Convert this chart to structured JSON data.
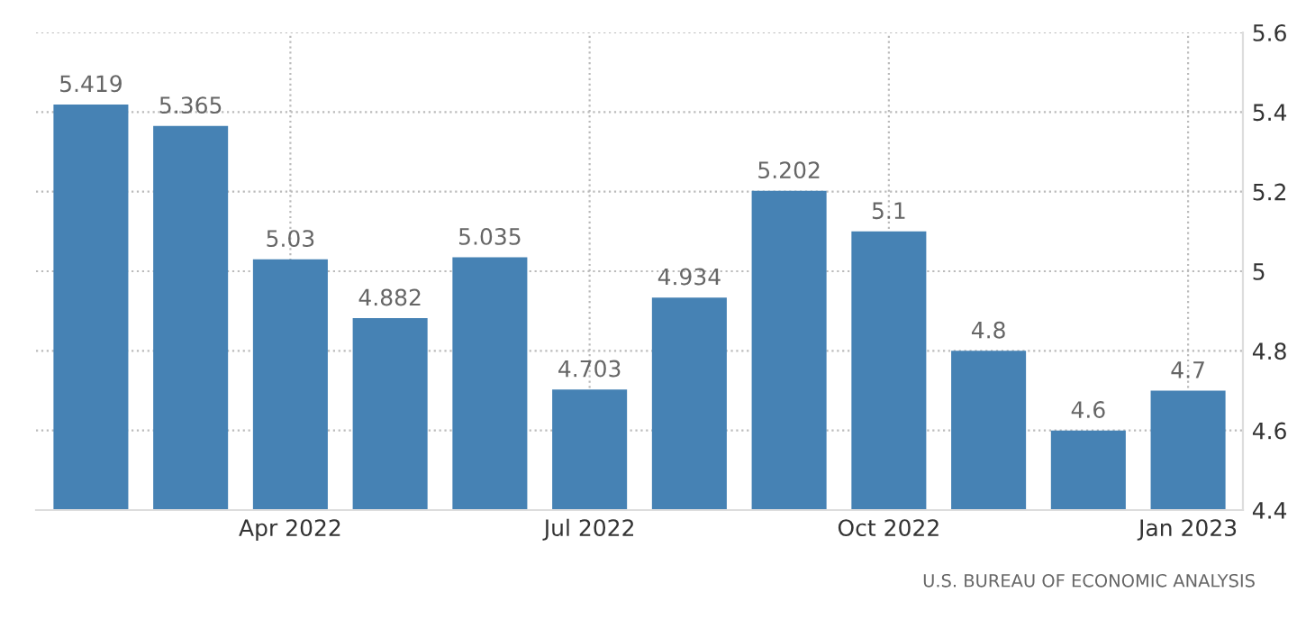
{
  "chart_data": {
    "type": "bar",
    "categories": [
      null,
      null,
      "Apr 2022",
      null,
      null,
      "Jul 2022",
      null,
      null,
      "Oct 2022",
      null,
      null,
      "Jan 2023"
    ],
    "values": [
      5.419,
      5.365,
      5.03,
      4.882,
      5.035,
      4.703,
      4.934,
      5.202,
      5.1,
      4.8,
      4.6,
      4.7
    ],
    "color": "#4682b4",
    "ylim": [
      4.4,
      5.6
    ],
    "yticks": [
      4.4,
      4.6,
      4.8,
      5,
      5.2,
      5.4,
      5.6
    ],
    "grid": true,
    "data_labels": true,
    "annotations": [
      "U.S. BUREAU OF ECONOMIC ANALYSIS"
    ]
  }
}
